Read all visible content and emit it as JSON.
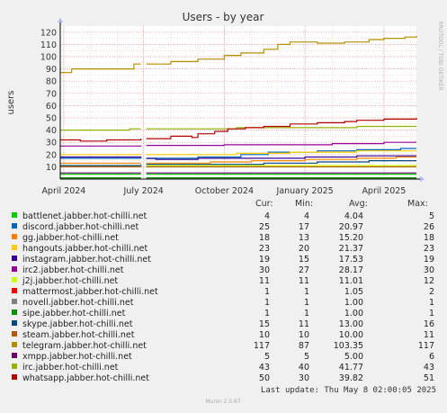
{
  "chart_data": {
    "type": "line",
    "title": "Users - by year",
    "ylabel": "users",
    "watermark": "RRDTOOL / TOBI OETIKER",
    "ylim": [
      0,
      125
    ],
    "y_ticks": [
      10,
      20,
      30,
      40,
      50,
      60,
      70,
      80,
      90,
      100,
      110,
      120
    ],
    "x_range": [
      "2024-03-28",
      "2025-05-08"
    ],
    "x_ticks": [
      {
        "label": "April 2024",
        "date": "2024-04-01"
      },
      {
        "label": "July 2024",
        "date": "2024-07-01"
      },
      {
        "label": "October 2024",
        "date": "2024-10-01"
      },
      {
        "label": "January 2025",
        "date": "2025-01-01"
      },
      {
        "label": "April 2025",
        "date": "2025-04-01"
      }
    ],
    "gap": [
      "2024-06-28",
      "2024-07-04"
    ],
    "columns": [
      "Cur:",
      "Min:",
      "Avg:",
      "Max:"
    ],
    "series": [
      {
        "name": "battlenet.jabber.hot-chilli.net",
        "color": "#00cc00",
        "cur": "4",
        "min": "4",
        "avg": "4.04",
        "max": "5",
        "points": [
          [
            "2024-03-28",
            4
          ],
          [
            "2025-05-08",
            4
          ]
        ]
      },
      {
        "name": "discord.jabber.hot-chilli.net",
        "color": "#0066b3",
        "cur": "25",
        "min": "17",
        "avg": "20.97",
        "max": "26",
        "points": [
          [
            "2024-03-28",
            17
          ],
          [
            "2024-08-15",
            17
          ],
          [
            "2024-09-01",
            18
          ],
          [
            "2024-10-20",
            20
          ],
          [
            "2024-11-20",
            22
          ],
          [
            "2025-01-15",
            23
          ],
          [
            "2025-03-01",
            24
          ],
          [
            "2025-04-20",
            25
          ],
          [
            "2025-05-08",
            25
          ]
        ]
      },
      {
        "name": "gg.jabber.hot-chilli.net",
        "color": "#ff8000",
        "cur": "18",
        "min": "13",
        "avg": "15.20",
        "max": "18",
        "points": [
          [
            "2024-03-28",
            13
          ],
          [
            "2024-07-15",
            13
          ],
          [
            "2024-09-15",
            14
          ],
          [
            "2024-11-01",
            15
          ],
          [
            "2025-01-01",
            16
          ],
          [
            "2025-03-01",
            17
          ],
          [
            "2025-04-15",
            18
          ],
          [
            "2025-05-08",
            18
          ]
        ]
      },
      {
        "name": "hangouts.jabber.hot-chilli.net",
        "color": "#ffcc00",
        "cur": "23",
        "min": "20",
        "avg": "21.37",
        "max": "23",
        "points": [
          [
            "2024-03-28",
            20
          ],
          [
            "2024-09-01",
            20
          ],
          [
            "2024-10-15",
            21
          ],
          [
            "2024-12-15",
            22
          ],
          [
            "2025-03-01",
            23
          ],
          [
            "2025-05-08",
            23
          ]
        ]
      },
      {
        "name": "instagram.jabber.hot-chilli.net",
        "color": "#330099",
        "cur": "19",
        "min": "15",
        "avg": "17.53",
        "max": "19",
        "points": [
          [
            "2024-03-28",
            18
          ],
          [
            "2024-06-15",
            18
          ],
          [
            "2024-07-15",
            16
          ],
          [
            "2024-09-01",
            17
          ],
          [
            "2024-11-01",
            17
          ],
          [
            "2025-01-01",
            18
          ],
          [
            "2025-03-01",
            19
          ],
          [
            "2025-05-08",
            19
          ]
        ]
      },
      {
        "name": "irc2.jabber.hot-chilli.net",
        "color": "#990099",
        "cur": "30",
        "min": "27",
        "avg": "28.17",
        "max": "30",
        "points": [
          [
            "2024-03-28",
            27
          ],
          [
            "2024-10-01",
            28
          ],
          [
            "2024-12-01",
            28
          ],
          [
            "2025-02-01",
            29
          ],
          [
            "2025-04-01",
            30
          ],
          [
            "2025-05-08",
            30
          ]
        ]
      },
      {
        "name": "j2j.jabber.hot-chilli.net",
        "color": "#ccff00",
        "cur": "11",
        "min": "11",
        "avg": "11.01",
        "max": "12",
        "points": [
          [
            "2024-03-28",
            11
          ],
          [
            "2025-05-08",
            11
          ]
        ]
      },
      {
        "name": "mattermost.jabber.hot-chilli.net",
        "color": "#ff0000",
        "cur": "1",
        "min": "1",
        "avg": "1.05",
        "max": "2",
        "points": [
          [
            "2024-03-28",
            1
          ],
          [
            "2025-05-08",
            1
          ]
        ]
      },
      {
        "name": "novell.jabber.hot-chilli.net",
        "color": "#808080",
        "cur": "1",
        "min": "1",
        "avg": "1.00",
        "max": "1",
        "points": [
          [
            "2024-03-28",
            1
          ],
          [
            "2025-05-08",
            1
          ]
        ]
      },
      {
        "name": "sipe.jabber.hot-chilli.net",
        "color": "#008f00",
        "cur": "1",
        "min": "1",
        "avg": "1.00",
        "max": "1",
        "points": [
          [
            "2024-03-28",
            1
          ],
          [
            "2025-05-08",
            1
          ]
        ]
      },
      {
        "name": "skype.jabber.hot-chilli.net",
        "color": "#00487d",
        "cur": "15",
        "min": "11",
        "avg": "13.00",
        "max": "16",
        "points": [
          [
            "2024-03-28",
            11
          ],
          [
            "2024-07-01",
            12
          ],
          [
            "2024-09-01",
            12
          ],
          [
            "2024-11-15",
            13
          ],
          [
            "2025-01-15",
            14
          ],
          [
            "2025-03-15",
            15
          ],
          [
            "2025-05-08",
            15
          ]
        ]
      },
      {
        "name": "steam.jabber.hot-chilli.net",
        "color": "#b35a00",
        "cur": "10",
        "min": "10",
        "avg": "10.00",
        "max": "11",
        "points": [
          [
            "2024-03-28",
            10
          ],
          [
            "2025-05-08",
            10
          ]
        ]
      },
      {
        "name": "telegram.jabber.hot-chilli.net",
        "color": "#b38f00",
        "cur": "117",
        "min": "87",
        "avg": "103.35",
        "max": "117",
        "points": [
          [
            "2024-03-28",
            87
          ],
          [
            "2024-04-08",
            87
          ],
          [
            "2024-04-10",
            90
          ],
          [
            "2024-06-01",
            90
          ],
          [
            "2024-06-20",
            94
          ],
          [
            "2024-07-04",
            94
          ],
          [
            "2024-08-01",
            96
          ],
          [
            "2024-09-01",
            98
          ],
          [
            "2024-10-01",
            101
          ],
          [
            "2024-10-20",
            103
          ],
          [
            "2024-11-15",
            106
          ],
          [
            "2024-12-01",
            110
          ],
          [
            "2024-12-15",
            112
          ],
          [
            "2025-01-15",
            111
          ],
          [
            "2025-02-15",
            112
          ],
          [
            "2025-03-15",
            114
          ],
          [
            "2025-04-01",
            115
          ],
          [
            "2025-04-25",
            116
          ],
          [
            "2025-05-08",
            117
          ]
        ]
      },
      {
        "name": "xmpp.jabber.hot-chilli.net",
        "color": "#6b006b",
        "cur": "5",
        "min": "5",
        "avg": "5.00",
        "max": "6",
        "points": [
          [
            "2024-03-28",
            5
          ],
          [
            "2025-05-08",
            5
          ]
        ]
      },
      {
        "name": "irc.jabber.hot-chilli.net",
        "color": "#8fb300",
        "cur": "43",
        "min": "40",
        "avg": "41.77",
        "max": "43",
        "points": [
          [
            "2024-03-28",
            40
          ],
          [
            "2024-06-15",
            41
          ],
          [
            "2024-09-01",
            41
          ],
          [
            "2024-10-15",
            42
          ],
          [
            "2025-01-15",
            42
          ],
          [
            "2025-03-01",
            43
          ],
          [
            "2025-05-08",
            43
          ]
        ]
      },
      {
        "name": "whatsapp.jabber.hot-chilli.net",
        "color": "#b30000",
        "cur": "50",
        "min": "30",
        "avg": "39.82",
        "max": "51",
        "points": [
          [
            "2024-03-28",
            32
          ],
          [
            "2024-04-20",
            31
          ],
          [
            "2024-05-20",
            32
          ],
          [
            "2024-06-28",
            33
          ],
          [
            "2024-07-04",
            33
          ],
          [
            "2024-08-01",
            35
          ],
          [
            "2024-08-25",
            34
          ],
          [
            "2024-09-01",
            37
          ],
          [
            "2024-09-20",
            39
          ],
          [
            "2024-10-05",
            41
          ],
          [
            "2024-10-25",
            42
          ],
          [
            "2024-11-15",
            43
          ],
          [
            "2024-12-15",
            45
          ],
          [
            "2025-01-15",
            46
          ],
          [
            "2025-02-15",
            47
          ],
          [
            "2025-03-01",
            48
          ],
          [
            "2025-04-01",
            49
          ],
          [
            "2025-05-08",
            50
          ]
        ]
      }
    ],
    "last_update": "Last update: Thu May  8 02:00:05 2025",
    "footer": "Munin 2.0.67"
  }
}
